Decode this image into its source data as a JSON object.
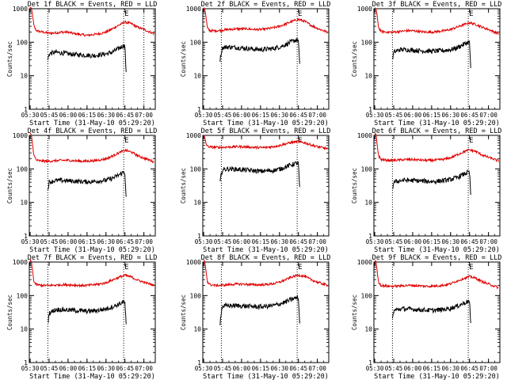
{
  "colors": {
    "black_series": "#000000",
    "red_series": "#e00000",
    "axis": "#000000",
    "background": "#ffffff"
  },
  "shared": {
    "xlabel": "Start Time (31-May-10 05:29:20)",
    "ylabel": "Counts/sec",
    "x_ticks": [
      "05:30",
      "05:45",
      "06:00",
      "06:15",
      "06:30",
      "06:45",
      "07:00"
    ],
    "y_ticks": [
      "1",
      "10",
      "100",
      "1000"
    ],
    "y_scale": "log",
    "ylim": [
      1,
      1000
    ],
    "xlim": [
      "05:29:20",
      "07:09:00"
    ]
  },
  "chart_data": [
    {
      "type": "line",
      "title": "Det 1f BLACK = Events, RED = LLD",
      "marker": "E",
      "xlim": [
        "05:29:20",
        "07:09:00"
      ],
      "ylim": [
        1,
        1000
      ],
      "y_scale": "log",
      "vlines": [
        "05:44",
        "06:44",
        "07:00"
      ],
      "series": [
        {
          "color": "red",
          "x": [
            "05:30",
            "05:31",
            "05:32",
            "05:33",
            "05:35",
            "05:40",
            "05:45",
            "05:50",
            "05:55",
            "06:00",
            "06:05",
            "06:10",
            "06:15",
            "06:20",
            "06:25",
            "06:30",
            "06:35",
            "06:40",
            "06:45",
            "06:50",
            "06:55",
            "07:00",
            "07:05",
            "07:08"
          ],
          "y": [
            1100,
            1000,
            600,
            300,
            220,
            200,
            185,
            190,
            200,
            200,
            180,
            170,
            160,
            170,
            180,
            200,
            250,
            320,
            400,
            360,
            280,
            240,
            200,
            180
          ]
        },
        {
          "color": "black",
          "x": [
            "05:44",
            "05:45",
            "05:50",
            "05:55",
            "06:00",
            "06:05",
            "06:10",
            "06:15",
            "06:20",
            "06:25",
            "06:30",
            "06:35",
            "06:40",
            "06:44",
            "06:45",
            "06:46"
          ],
          "y": [
            30,
            45,
            50,
            48,
            45,
            43,
            42,
            41,
            40,
            42,
            45,
            50,
            65,
            80,
            78,
            10
          ]
        }
      ]
    },
    {
      "type": "line",
      "title": "Det 2f BLACK = Events, RED = LLD",
      "marker": "E",
      "xlim": [
        "05:29:20",
        "07:09:00"
      ],
      "ylim": [
        1,
        1000
      ],
      "y_scale": "log",
      "vlines": [
        "05:44",
        "06:44"
      ],
      "series": [
        {
          "color": "red",
          "x": [
            "05:30",
            "05:31",
            "05:32",
            "05:33",
            "05:35",
            "05:40",
            "05:45",
            "05:50",
            "05:55",
            "06:00",
            "06:05",
            "06:10",
            "06:15",
            "06:20",
            "06:25",
            "06:30",
            "06:35",
            "06:40",
            "06:45",
            "06:50",
            "06:55",
            "07:00",
            "07:05",
            "07:08"
          ],
          "y": [
            1100,
            1000,
            500,
            260,
            220,
            220,
            230,
            240,
            250,
            250,
            250,
            240,
            240,
            250,
            270,
            300,
            350,
            420,
            480,
            420,
            320,
            260,
            220,
            200
          ]
        },
        {
          "color": "black",
          "x": [
            "05:43",
            "05:44",
            "05:45",
            "05:50",
            "05:55",
            "06:00",
            "06:05",
            "06:10",
            "06:15",
            "06:20",
            "06:25",
            "06:30",
            "06:35",
            "06:40",
            "06:44",
            "06:45",
            "06:46"
          ],
          "y": [
            30,
            50,
            70,
            72,
            70,
            68,
            65,
            62,
            60,
            62,
            65,
            72,
            85,
            105,
            120,
            110,
            20
          ]
        }
      ]
    },
    {
      "type": "line",
      "title": "Det 3f BLACK = Events, RED = LLD",
      "marker": "E",
      "xlim": [
        "05:29:20",
        "07:09:00"
      ],
      "ylim": [
        1,
        1000
      ],
      "y_scale": "log",
      "vlines": [
        "05:44",
        "06:44"
      ],
      "series": [
        {
          "color": "red",
          "x": [
            "05:30",
            "05:31",
            "05:32",
            "05:33",
            "05:35",
            "05:40",
            "05:45",
            "05:50",
            "05:55",
            "06:00",
            "06:05",
            "06:10",
            "06:15",
            "06:20",
            "06:25",
            "06:30",
            "06:35",
            "06:40",
            "06:45",
            "06:50",
            "06:55",
            "07:00",
            "07:05",
            "07:08"
          ],
          "y": [
            1100,
            1000,
            550,
            280,
            210,
            200,
            200,
            210,
            220,
            220,
            210,
            200,
            200,
            210,
            220,
            240,
            280,
            330,
            380,
            340,
            280,
            240,
            200,
            180
          ]
        },
        {
          "color": "black",
          "x": [
            "05:44",
            "05:45",
            "05:50",
            "05:55",
            "06:00",
            "06:05",
            "06:10",
            "06:15",
            "06:20",
            "06:25",
            "06:30",
            "06:35",
            "06:40",
            "06:44",
            "06:45",
            "06:46"
          ],
          "y": [
            30,
            50,
            60,
            60,
            58,
            56,
            55,
            54,
            55,
            57,
            60,
            68,
            85,
            100,
            95,
            15
          ]
        }
      ]
    },
    {
      "type": "line",
      "title": "Det 4f BLACK = Events, RED = LLD",
      "marker": "E",
      "xlim": [
        "05:29:20",
        "07:09:00"
      ],
      "ylim": [
        1,
        1000
      ],
      "y_scale": "log",
      "vlines": [
        "05:44",
        "06:44"
      ],
      "series": [
        {
          "color": "red",
          "x": [
            "05:30",
            "05:31",
            "05:32",
            "05:33",
            "05:35",
            "05:40",
            "05:45",
            "05:50",
            "05:55",
            "06:00",
            "06:05",
            "06:10",
            "06:15",
            "06:20",
            "06:25",
            "06:30",
            "06:35",
            "06:40",
            "06:45",
            "06:50",
            "06:55",
            "07:00",
            "07:05",
            "07:08"
          ],
          "y": [
            1100,
            1000,
            500,
            250,
            180,
            170,
            170,
            175,
            180,
            180,
            175,
            170,
            170,
            175,
            185,
            200,
            240,
            300,
            360,
            320,
            250,
            210,
            180,
            160
          ]
        },
        {
          "color": "black",
          "x": [
            "05:44",
            "05:45",
            "05:50",
            "05:55",
            "06:00",
            "06:05",
            "06:10",
            "06:15",
            "06:20",
            "06:25",
            "06:30",
            "06:35",
            "06:40",
            "06:44",
            "06:45",
            "06:46"
          ],
          "y": [
            25,
            40,
            45,
            45,
            44,
            43,
            42,
            41,
            42,
            44,
            46,
            52,
            65,
            80,
            75,
            12
          ]
        }
      ]
    },
    {
      "type": "line",
      "title": "Det 5f BLACK = Events, RED = LLD",
      "marker": "E",
      "xlim": [
        "05:29:20",
        "07:09:00"
      ],
      "ylim": [
        1,
        1000
      ],
      "y_scale": "log",
      "vlines": [
        "05:44",
        "06:44"
      ],
      "series": [
        {
          "color": "red",
          "x": [
            "05:30",
            "05:31",
            "05:32",
            "05:33",
            "05:35",
            "05:40",
            "05:45",
            "05:50",
            "05:55",
            "06:00",
            "06:05",
            "06:10",
            "06:15",
            "06:20",
            "06:25",
            "06:30",
            "06:35",
            "06:40",
            "06:45",
            "06:50",
            "06:55",
            "07:00",
            "07:05",
            "07:08"
          ],
          "y": [
            1000,
            800,
            550,
            480,
            450,
            440,
            440,
            450,
            460,
            460,
            450,
            440,
            430,
            440,
            460,
            500,
            560,
            620,
            650,
            600,
            520,
            460,
            420,
            400
          ]
        },
        {
          "color": "black",
          "x": [
            "05:43",
            "05:44",
            "05:45",
            "05:50",
            "05:55",
            "06:00",
            "06:05",
            "06:10",
            "06:15",
            "06:20",
            "06:25",
            "06:30",
            "06:35",
            "06:40",
            "06:44",
            "06:45",
            "06:46"
          ],
          "y": [
            40,
            70,
            95,
            100,
            98,
            95,
            92,
            88,
            85,
            87,
            90,
            98,
            115,
            135,
            150,
            140,
            25
          ]
        }
      ]
    },
    {
      "type": "line",
      "title": "Det 6f BLACK = Events, RED = LLD",
      "marker": "E",
      "xlim": [
        "05:29:20",
        "07:09:00"
      ],
      "ylim": [
        1,
        1000
      ],
      "y_scale": "log",
      "vlines": [
        "05:44",
        "06:44"
      ],
      "series": [
        {
          "color": "red",
          "x": [
            "05:30",
            "05:31",
            "05:32",
            "05:33",
            "05:35",
            "05:40",
            "05:45",
            "05:50",
            "05:55",
            "06:00",
            "06:05",
            "06:10",
            "06:15",
            "06:20",
            "06:25",
            "06:30",
            "06:35",
            "06:40",
            "06:45",
            "06:50",
            "06:55",
            "07:00",
            "07:05",
            "07:08"
          ],
          "y": [
            1100,
            1000,
            500,
            250,
            190,
            180,
            180,
            185,
            190,
            190,
            185,
            180,
            180,
            185,
            195,
            215,
            260,
            320,
            370,
            330,
            260,
            220,
            190,
            170
          ]
        },
        {
          "color": "black",
          "x": [
            "05:44",
            "05:45",
            "05:50",
            "05:55",
            "06:00",
            "06:05",
            "06:10",
            "06:15",
            "06:20",
            "06:25",
            "06:30",
            "06:35",
            "06:40",
            "06:44",
            "06:45",
            "06:46"
          ],
          "y": [
            25,
            40,
            45,
            46,
            45,
            44,
            43,
            42,
            43,
            45,
            48,
            55,
            68,
            80,
            75,
            15
          ]
        }
      ]
    },
    {
      "type": "line",
      "title": "Det 7f BLACK = Events, RED = LLD",
      "marker": "E",
      "xlim": [
        "05:29:20",
        "07:09:00"
      ],
      "ylim": [
        1,
        1000
      ],
      "y_scale": "log",
      "vlines": [
        "05:44",
        "06:44"
      ],
      "series": [
        {
          "color": "red",
          "x": [
            "05:30",
            "05:31",
            "05:32",
            "05:33",
            "05:35",
            "05:40",
            "05:45",
            "05:50",
            "05:55",
            "06:00",
            "06:05",
            "06:10",
            "06:15",
            "06:20",
            "06:25",
            "06:30",
            "06:35",
            "06:40",
            "06:45",
            "06:50",
            "06:55",
            "07:00",
            "07:05",
            "07:08"
          ],
          "y": [
            1100,
            1000,
            500,
            260,
            210,
            200,
            200,
            205,
            210,
            210,
            205,
            200,
            200,
            210,
            220,
            240,
            290,
            350,
            400,
            360,
            290,
            250,
            220,
            200
          ]
        },
        {
          "color": "black",
          "x": [
            "05:44",
            "05:45",
            "05:50",
            "05:55",
            "06:00",
            "06:05",
            "06:10",
            "06:15",
            "06:20",
            "06:25",
            "06:30",
            "06:35",
            "06:40",
            "06:44",
            "06:45",
            "06:46"
          ],
          "y": [
            15,
            30,
            38,
            38,
            37,
            36,
            35,
            34,
            35,
            37,
            40,
            46,
            55,
            65,
            60,
            12
          ]
        }
      ]
    },
    {
      "type": "line",
      "title": "Det 8f BLACK = Events, RED = LLD",
      "marker": "E",
      "xlim": [
        "05:29:20",
        "07:09:00"
      ],
      "ylim": [
        1,
        1000
      ],
      "y_scale": "log",
      "vlines": [
        "05:44",
        "06:44"
      ],
      "series": [
        {
          "color": "red",
          "x": [
            "05:30",
            "05:31",
            "05:32",
            "05:33",
            "05:35",
            "05:40",
            "05:45",
            "05:50",
            "05:55",
            "06:00",
            "06:05",
            "06:10",
            "06:15",
            "06:20",
            "06:25",
            "06:30",
            "06:35",
            "06:40",
            "06:45",
            "06:50",
            "06:55",
            "07:00",
            "07:05",
            "07:08"
          ],
          "y": [
            1100,
            1000,
            500,
            260,
            210,
            200,
            205,
            210,
            220,
            220,
            215,
            210,
            210,
            215,
            225,
            250,
            300,
            360,
            410,
            370,
            300,
            250,
            220,
            200
          ]
        },
        {
          "color": "black",
          "x": [
            "05:43",
            "05:44",
            "05:45",
            "05:50",
            "05:55",
            "06:00",
            "06:05",
            "06:10",
            "06:15",
            "06:20",
            "06:25",
            "06:30",
            "06:35",
            "06:40",
            "06:44",
            "06:45",
            "06:46"
          ],
          "y": [
            15,
            35,
            48,
            50,
            50,
            49,
            48,
            47,
            46,
            48,
            50,
            56,
            65,
            78,
            88,
            80,
            15
          ]
        }
      ]
    },
    {
      "type": "line",
      "title": "Det 9f BLACK = Events, RED = LLD",
      "marker": "E",
      "xlim": [
        "05:29:20",
        "07:09:00"
      ],
      "ylim": [
        1,
        1000
      ],
      "y_scale": "log",
      "vlines": [
        "05:44",
        "06:44"
      ],
      "series": [
        {
          "color": "red",
          "x": [
            "05:30",
            "05:31",
            "05:32",
            "05:33",
            "05:35",
            "05:40",
            "05:45",
            "05:50",
            "05:55",
            "06:00",
            "06:05",
            "06:10",
            "06:15",
            "06:20",
            "06:25",
            "06:30",
            "06:35",
            "06:40",
            "06:45",
            "06:50",
            "06:55",
            "07:00",
            "07:05",
            "07:08"
          ],
          "y": [
            1100,
            1000,
            500,
            250,
            200,
            190,
            190,
            195,
            200,
            200,
            195,
            190,
            190,
            195,
            205,
            225,
            270,
            320,
            370,
            330,
            260,
            220,
            190,
            170
          ]
        },
        {
          "color": "black",
          "x": [
            "05:44",
            "05:45",
            "05:50",
            "05:55",
            "06:00",
            "06:05",
            "06:10",
            "06:15",
            "06:20",
            "06:25",
            "06:30",
            "06:35",
            "06:40",
            "06:44",
            "06:45",
            "06:46"
          ],
          "y": [
            20,
            35,
            40,
            40,
            39,
            38,
            37,
            36,
            37,
            39,
            42,
            48,
            58,
            68,
            65,
            12
          ]
        }
      ]
    }
  ]
}
